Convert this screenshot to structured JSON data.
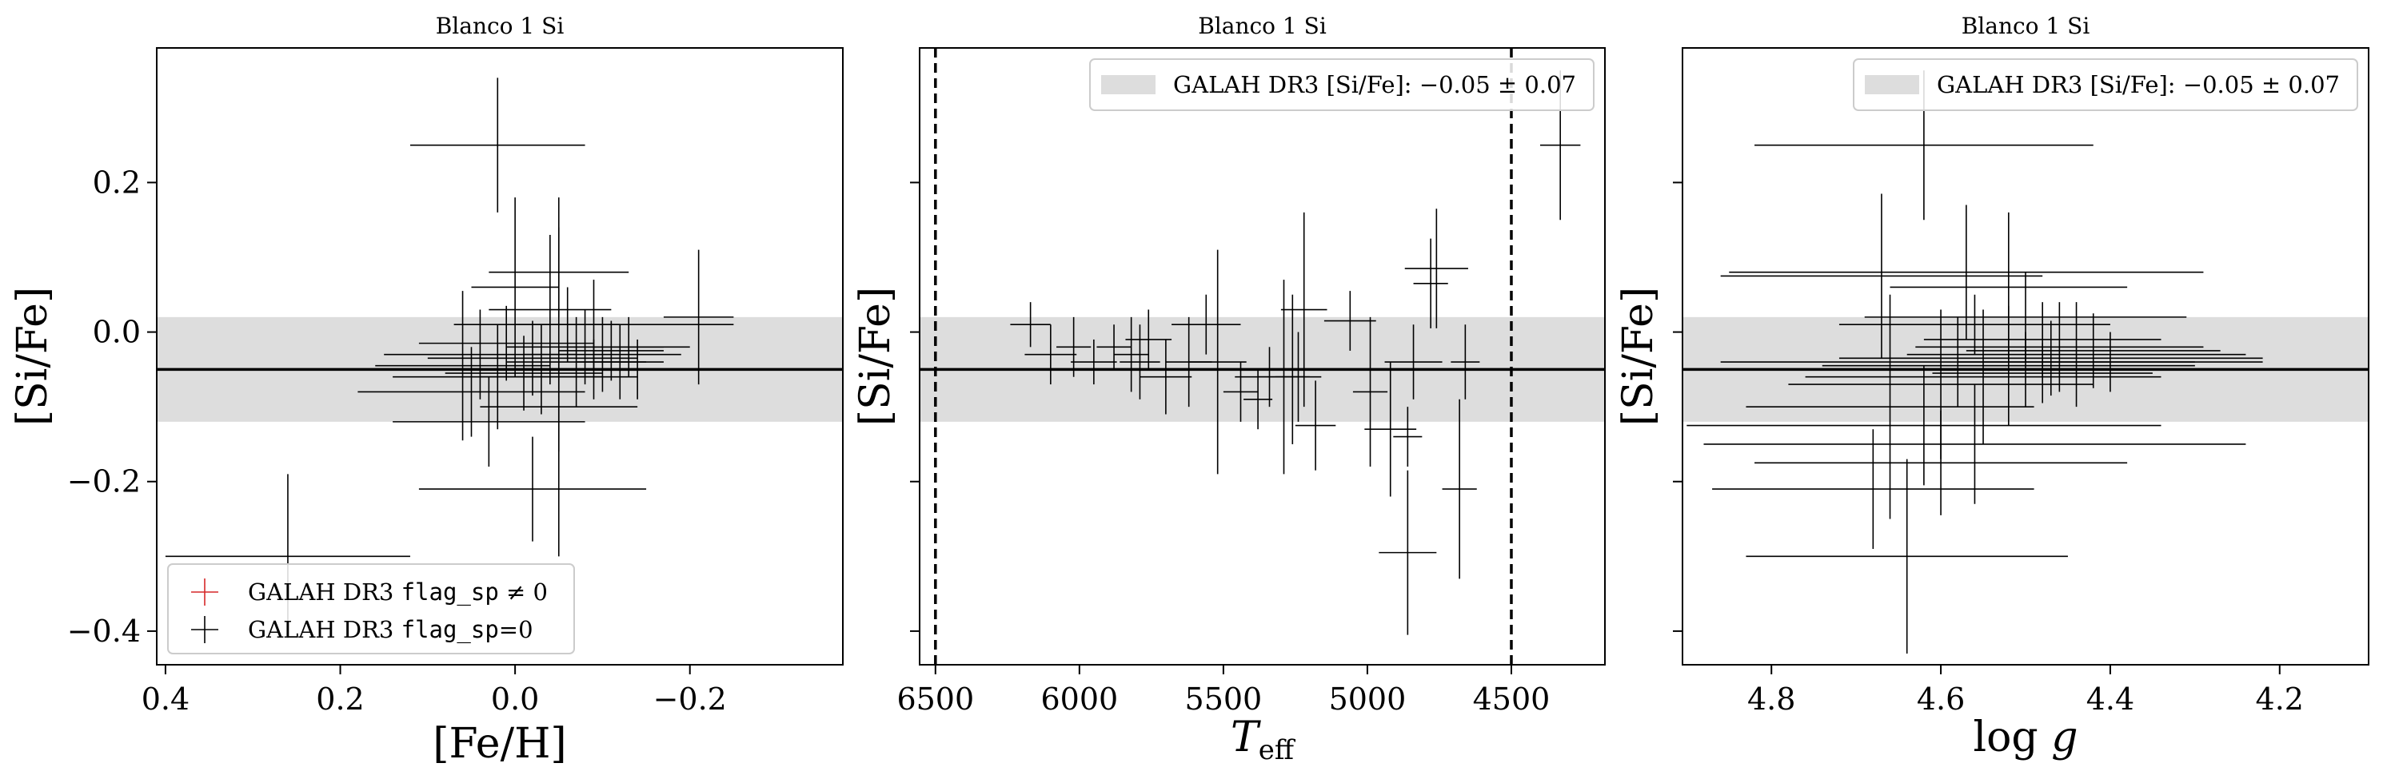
{
  "chart_data": [
    {
      "type": "scatter",
      "title": "Blanco 1 Si",
      "xlabel": "[Fe/H]",
      "ylabel": "[Si/Fe]",
      "xlim": [
        0.41,
        -0.375
      ],
      "ylim": [
        -0.445,
        0.38
      ],
      "xticks": [
        0.4,
        0.2,
        0.0,
        -0.2
      ],
      "xtick_labels": [
        "0.4",
        "0.2",
        "0.0",
        "−0.2"
      ],
      "yticks": [
        0.2,
        0.0,
        -0.2,
        -0.4
      ],
      "ytick_labels": [
        "0.2",
        "0.0",
        "−0.2",
        "−0.4"
      ],
      "show_ytick_labels": true,
      "band": {
        "center": -0.05,
        "err": 0.07
      },
      "hline": -0.05,
      "vlines": [],
      "legend": {
        "placement": "lower-left",
        "entries": [
          {
            "label_prefix": "GALAH DR3 ",
            "label_code": "flag_sp",
            "label_suffix": " ≠ 0",
            "color": "#d62728",
            "marker": "cross"
          },
          {
            "label_prefix": "GALAH DR3 ",
            "label_code": "flag_sp",
            "label_suffix": "=0",
            "color": "#000000",
            "marker": "cross"
          }
        ]
      },
      "series": [
        {
          "color": "#000000",
          "points": [
            {
              "x": 0.26,
              "y": -0.3,
              "xerr": 0.14,
              "yerr": 0.11
            },
            {
              "x": 0.02,
              "y": 0.25,
              "xerr": 0.1,
              "yerr": 0.09
            },
            {
              "x": 0.03,
              "y": -0.12,
              "xerr": 0.11,
              "yerr": 0.06
            },
            {
              "x": 0.05,
              "y": -0.08,
              "xerr": 0.13,
              "yerr": 0.06
            },
            {
              "x": 0.06,
              "y": -0.045,
              "xerr": 0.1,
              "yerr": 0.1
            },
            {
              "x": 0.04,
              "y": -0.03,
              "xerr": 0.11,
              "yerr": 0.06
            },
            {
              "x": 0.02,
              "y": -0.06,
              "xerr": 0.12,
              "yerr": 0.07
            },
            {
              "x": 0.01,
              "y": -0.015,
              "xerr": 0.1,
              "yerr": 0.05
            },
            {
              "x": 0.0,
              "y": 0.06,
              "xerr": 0.05,
              "yerr": 0.12
            },
            {
              "x": -0.01,
              "y": -0.055,
              "xerr": 0.09,
              "yerr": 0.05
            },
            {
              "x": -0.02,
              "y": -0.21,
              "xerr": 0.13,
              "yerr": 0.07
            },
            {
              "x": -0.03,
              "y": -0.05,
              "xerr": 0.08,
              "yerr": 0.06
            },
            {
              "x": -0.04,
              "y": 0.03,
              "xerr": 0.07,
              "yerr": 0.1
            },
            {
              "x": -0.05,
              "y": -0.06,
              "xerr": 0.09,
              "yerr": 0.24
            },
            {
              "x": -0.06,
              "y": 0.01,
              "xerr": 0.06,
              "yerr": 0.05
            },
            {
              "x": -0.07,
              "y": -0.04,
              "xerr": 0.08,
              "yerr": 0.06
            },
            {
              "x": -0.08,
              "y": -0.02,
              "xerr": 0.09,
              "yerr": 0.05
            },
            {
              "x": -0.09,
              "y": -0.05,
              "xerr": 0.1,
              "yerr": 0.04
            },
            {
              "x": -0.1,
              "y": -0.03,
              "xerr": 0.09,
              "yerr": 0.05
            },
            {
              "x": -0.11,
              "y": -0.025,
              "xerr": 0.06,
              "yerr": 0.04
            },
            {
              "x": -0.12,
              "y": -0.04,
              "xerr": 0.05,
              "yerr": 0.05
            },
            {
              "x": -0.13,
              "y": -0.02,
              "xerr": 0.07,
              "yerr": 0.04
            },
            {
              "x": -0.09,
              "y": 0.01,
              "xerr": 0.16,
              "yerr": 0.06
            },
            {
              "x": -0.05,
              "y": 0.08,
              "xerr": 0.08,
              "yerr": 0.06
            },
            {
              "x": -0.02,
              "y": -0.035,
              "xerr": 0.12,
              "yerr": 0.05
            },
            {
              "x": -0.14,
              "y": -0.05,
              "xerr": 0.05,
              "yerr": 0.04
            },
            {
              "x": -0.21,
              "y": 0.02,
              "xerr": 0.04,
              "yerr": 0.09
            },
            {
              "x": -0.05,
              "y": -0.1,
              "xerr": 0.09,
              "yerr": 0.06
            }
          ]
        }
      ]
    },
    {
      "type": "scatter",
      "title": "Blanco 1 Si",
      "xlabel": "T_eff",
      "ylabel": "[Si/Fe]",
      "xlim": [
        6555,
        4175
      ],
      "ylim": [
        -0.445,
        0.38
      ],
      "xticks": [
        6500,
        6000,
        5500,
        5000,
        4500
      ],
      "xtick_labels": [
        "6500",
        "6000",
        "5500",
        "5000",
        "4500"
      ],
      "yticks": [
        0.2,
        0.0,
        -0.2,
        -0.4
      ],
      "ytick_labels": [
        "0.2",
        "0.0",
        "−0.2",
        "−0.4"
      ],
      "show_ytick_labels": false,
      "band": {
        "center": -0.05,
        "err": 0.07
      },
      "hline": -0.05,
      "vlines": [
        6500,
        4500
      ],
      "legend": {
        "placement": "upper-right",
        "entries": [
          {
            "label_prefix": "GALAH DR3 [Si/Fe]:  ",
            "label_code": "",
            "label_suffix": "−0.05 ± 0.07",
            "color": "#dddddd",
            "marker": "band"
          }
        ]
      },
      "series": [
        {
          "color": "#000000",
          "points": [
            {
              "x": 6170,
              "y": 0.01,
              "xerr": 70,
              "yerr": 0.03
            },
            {
              "x": 6100,
              "y": -0.03,
              "xerr": 90,
              "yerr": 0.04
            },
            {
              "x": 6020,
              "y": -0.02,
              "xerr": 60,
              "yerr": 0.04
            },
            {
              "x": 5950,
              "y": -0.04,
              "xerr": 80,
              "yerr": 0.03
            },
            {
              "x": 5880,
              "y": -0.02,
              "xerr": 60,
              "yerr": 0.03
            },
            {
              "x": 5820,
              "y": -0.03,
              "xerr": 60,
              "yerr": 0.05
            },
            {
              "x": 5790,
              "y": -0.04,
              "xerr": 70,
              "yerr": 0.05
            },
            {
              "x": 5760,
              "y": -0.01,
              "xerr": 80,
              "yerr": 0.04
            },
            {
              "x": 5700,
              "y": -0.06,
              "xerr": 90,
              "yerr": 0.05
            },
            {
              "x": 5620,
              "y": -0.04,
              "xerr": 80,
              "yerr": 0.06
            },
            {
              "x": 5560,
              "y": 0.01,
              "xerr": 120,
              "yerr": 0.04
            },
            {
              "x": 5520,
              "y": -0.04,
              "xerr": 100,
              "yerr": 0.15
            },
            {
              "x": 5440,
              "y": -0.08,
              "xerr": 60,
              "yerr": 0.04
            },
            {
              "x": 5380,
              "y": -0.09,
              "xerr": 50,
              "yerr": 0.04
            },
            {
              "x": 5340,
              "y": -0.06,
              "xerr": 120,
              "yerr": 0.04
            },
            {
              "x": 5290,
              "y": -0.06,
              "xerr": 90,
              "yerr": 0.13
            },
            {
              "x": 5260,
              "y": -0.05,
              "xerr": 70,
              "yerr": 0.1
            },
            {
              "x": 5240,
              "y": -0.06,
              "xerr": 80,
              "yerr": 0.06
            },
            {
              "x": 5220,
              "y": 0.03,
              "xerr": 80,
              "yerr": 0.13
            },
            {
              "x": 5180,
              "y": -0.125,
              "xerr": 70,
              "yerr": 0.06
            },
            {
              "x": 5060,
              "y": 0.015,
              "xerr": 90,
              "yerr": 0.04
            },
            {
              "x": 4990,
              "y": -0.08,
              "xerr": 60,
              "yerr": 0.1
            },
            {
              "x": 4920,
              "y": -0.13,
              "xerr": 90,
              "yerr": 0.09
            },
            {
              "x": 4860,
              "y": -0.14,
              "xerr": 50,
              "yerr": 0.04
            },
            {
              "x": 4860,
              "y": -0.295,
              "xerr": 100,
              "yerr": 0.11
            },
            {
              "x": 4840,
              "y": -0.04,
              "xerr": 100,
              "yerr": 0.05
            },
            {
              "x": 4760,
              "y": 0.085,
              "xerr": 110,
              "yerr": 0.08
            },
            {
              "x": 4780,
              "y": 0.065,
              "xerr": 60,
              "yerr": 0.06
            },
            {
              "x": 4680,
              "y": -0.21,
              "xerr": 60,
              "yerr": 0.12
            },
            {
              "x": 4660,
              "y": -0.04,
              "xerr": 50,
              "yerr": 0.05
            },
            {
              "x": 4330,
              "y": 0.25,
              "xerr": 70,
              "yerr": 0.1
            }
          ]
        }
      ]
    },
    {
      "type": "scatter",
      "title": "Blanco 1 Si",
      "xlabel": "log g",
      "ylabel": "[Si/Fe]",
      "xlim": [
        4.905,
        4.095
      ],
      "ylim": [
        -0.445,
        0.38
      ],
      "xticks": [
        4.8,
        4.6,
        4.4,
        4.2
      ],
      "xtick_labels": [
        "4.8",
        "4.6",
        "4.4",
        "4.2"
      ],
      "yticks": [
        0.2,
        0.0,
        -0.2,
        -0.4
      ],
      "ytick_labels": [
        "0.2",
        "0.0",
        "−0.2",
        "−0.4"
      ],
      "show_ytick_labels": false,
      "band": {
        "center": -0.05,
        "err": 0.07
      },
      "hline": -0.05,
      "vlines": [],
      "legend": {
        "placement": "upper-right",
        "entries": [
          {
            "label_prefix": "GALAH DR3 [Si/Fe]:  ",
            "label_code": "",
            "label_suffix": "−0.05 ± 0.07",
            "color": "#dddddd",
            "marker": "band"
          }
        ]
      },
      "series": [
        {
          "color": "#000000",
          "points": [
            {
              "x": 4.62,
              "y": 0.25,
              "xerr": 0.2,
              "yerr": 0.1
            },
            {
              "x": 4.57,
              "y": 0.08,
              "xerr": 0.28,
              "yerr": 0.09
            },
            {
              "x": 4.67,
              "y": 0.075,
              "xerr": 0.19,
              "yerr": 0.11
            },
            {
              "x": 4.52,
              "y": 0.06,
              "xerr": 0.14,
              "yerr": 0.1
            },
            {
              "x": 4.5,
              "y": 0.02,
              "xerr": 0.19,
              "yerr": 0.06
            },
            {
              "x": 4.56,
              "y": 0.01,
              "xerr": 0.16,
              "yerr": 0.04
            },
            {
              "x": 4.48,
              "y": -0.01,
              "xerr": 0.14,
              "yerr": 0.05
            },
            {
              "x": 4.46,
              "y": -0.02,
              "xerr": 0.17,
              "yerr": 0.06
            },
            {
              "x": 4.44,
              "y": -0.03,
              "xerr": 0.2,
              "yerr": 0.07
            },
            {
              "x": 4.47,
              "y": -0.035,
              "xerr": 0.25,
              "yerr": 0.05
            },
            {
              "x": 4.58,
              "y": -0.04,
              "xerr": 0.28,
              "yerr": 0.06
            },
            {
              "x": 4.52,
              "y": -0.045,
              "xerr": 0.22,
              "yerr": 0.08
            },
            {
              "x": 4.5,
              "y": -0.05,
              "xerr": 0.3,
              "yerr": 0.05
            },
            {
              "x": 4.55,
              "y": -0.06,
              "xerr": 0.21,
              "yerr": 0.09
            },
            {
              "x": 4.6,
              "y": -0.07,
              "xerr": 0.18,
              "yerr": 0.1
            },
            {
              "x": 4.66,
              "y": -0.1,
              "xerr": 0.17,
              "yerr": 0.15
            },
            {
              "x": 4.62,
              "y": -0.125,
              "xerr": 0.28,
              "yerr": 0.08
            },
            {
              "x": 4.56,
              "y": -0.15,
              "xerr": 0.32,
              "yerr": 0.08
            },
            {
              "x": 4.6,
              "y": -0.175,
              "xerr": 0.22,
              "yerr": 0.07
            },
            {
              "x": 4.68,
              "y": -0.21,
              "xerr": 0.19,
              "yerr": 0.08
            },
            {
              "x": 4.64,
              "y": -0.3,
              "xerr": 0.19,
              "yerr": 0.13
            },
            {
              "x": 4.48,
              "y": -0.055,
              "xerr": 0.13,
              "yerr": 0.04
            },
            {
              "x": 4.42,
              "y": -0.025,
              "xerr": 0.15,
              "yerr": 0.05
            },
            {
              "x": 4.4,
              "y": -0.04,
              "xerr": 0.18,
              "yerr": 0.04
            }
          ]
        }
      ]
    }
  ]
}
